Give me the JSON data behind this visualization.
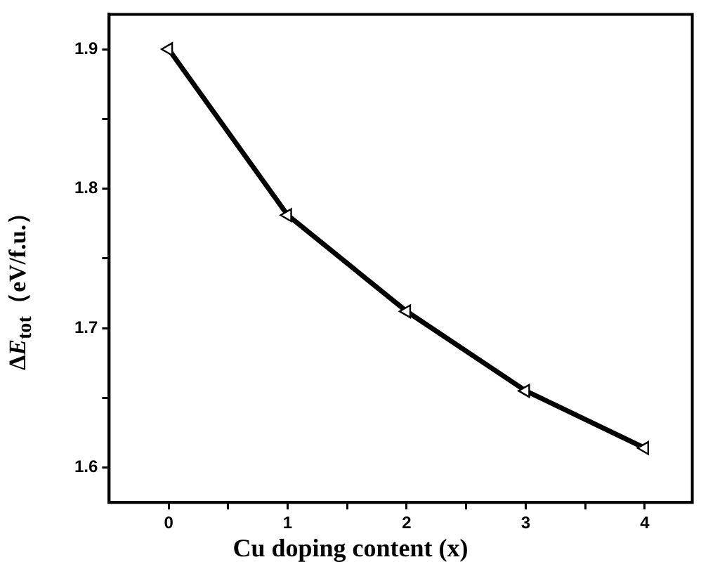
{
  "chart_data": {
    "type": "line",
    "xlabel": "Cu doping content (x)",
    "ylabel": "ΔE$_{tot}$（eV/f.u.）",
    "x": [
      0,
      1,
      2,
      3,
      4
    ],
    "series": [
      {
        "color": "#000000",
        "values": [
          1.9,
          1.781,
          1.712,
          1.655,
          1.614
        ]
      }
    ],
    "xlim": [
      -0.5,
      4.4
    ],
    "xticks": [
      0,
      {
        "value": 0.5,
        "label": null
      },
      1,
      {
        "value": 1.5,
        "label": null
      },
      2,
      {
        "value": 2.5,
        "label": null
      },
      3,
      {
        "value": 3.5,
        "label": null
      },
      4
    ],
    "ylim": [
      1.575,
      1.925
    ],
    "yticks": [
      1.6,
      {
        "value": 1.65,
        "label": null
      },
      1.7,
      {
        "value": 1.75,
        "label": null
      },
      1.8,
      {
        "value": 1.85,
        "label": null
      },
      1.9
    ],
    "grid": false,
    "legend": false,
    "marker": "triangle",
    "line_style": "solid"
  }
}
